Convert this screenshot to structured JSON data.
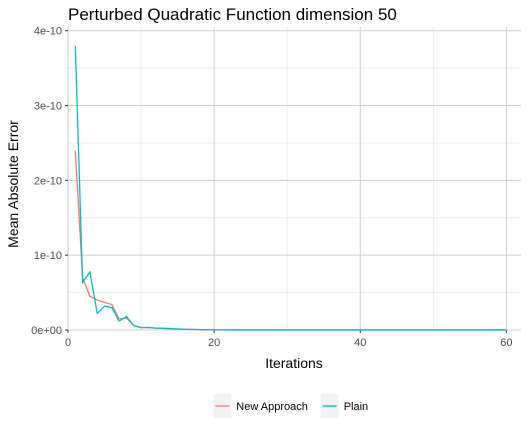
{
  "chart_data": {
    "type": "line",
    "title": "Perturbed Quadratic Function dimension 50",
    "xlabel": "Iterations",
    "ylabel": "Mean Absolute Error",
    "xlim": [
      0,
      62
    ],
    "ylim": [
      0,
      4.05e-10
    ],
    "xticks": [
      0,
      20,
      40,
      60
    ],
    "xtick_labels": [
      "0",
      "20",
      "40",
      "60"
    ],
    "yticks": [
      0,
      1e-10,
      2e-10,
      3e-10,
      4e-10
    ],
    "ytick_labels": [
      "0e+00",
      "1e-10",
      "2e-10",
      "3e-10",
      "4e-10"
    ],
    "grid": true,
    "legend_position": "bottom",
    "x": [
      1,
      2,
      3,
      4,
      5,
      6,
      7,
      8,
      9,
      10,
      11,
      12,
      13,
      14,
      15,
      16,
      17,
      18,
      19,
      20,
      21,
      22,
      23,
      24,
      25,
      26,
      27,
      28,
      29,
      30,
      31,
      32,
      33,
      34,
      35,
      36,
      37,
      38,
      39,
      40,
      41,
      42,
      43,
      44,
      45,
      46,
      47,
      48,
      49,
      50,
      51,
      52,
      53,
      54,
      55,
      56,
      57,
      58,
      59,
      60
    ],
    "series": [
      {
        "name": "New Approach",
        "color": "#F8766D",
        "values": [
          2.4e-10,
          7e-11,
          4.5e-11,
          4e-11,
          3.7e-11,
          3.4e-11,
          1.5e-11,
          1.6e-11,
          6e-12,
          3.5e-12,
          3e-12,
          2.5e-12,
          2e-12,
          1.5e-12,
          1e-12,
          8e-13,
          6e-13,
          4e-13,
          3e-13,
          2e-13,
          1.5e-13,
          1e-13,
          1e-13,
          1e-13,
          1e-13,
          1e-13,
          1e-13,
          1e-13,
          1e-13,
          1e-13,
          1e-13,
          1e-13,
          1e-13,
          1e-13,
          1e-13,
          1e-13,
          1e-13,
          1e-13,
          1e-13,
          1e-13,
          1e-13,
          1e-13,
          1e-13,
          1e-13,
          1e-13,
          1e-13,
          1e-13,
          1e-13,
          1e-13,
          1e-13,
          1e-13,
          1e-13,
          1e-13,
          1e-13,
          1e-13,
          1e-13,
          1e-13,
          1e-13,
          1e-13,
          1e-13
        ]
      },
      {
        "name": "Plain",
        "color": "#00BFC4",
        "values": [
          3.8e-10,
          6.3e-11,
          7.8e-11,
          2.2e-11,
          3.2e-11,
          3e-11,
          1.2e-11,
          1.8e-11,
          6e-12,
          3e-12,
          3.5e-12,
          2.5e-12,
          2.5e-12,
          2e-12,
          1.5e-12,
          1e-12,
          8e-13,
          6e-13,
          4e-13,
          3e-13,
          2e-13,
          1.5e-13,
          1e-13,
          1e-13,
          1e-13,
          1e-13,
          1e-13,
          1e-13,
          1e-13,
          1e-13,
          1e-13,
          1e-13,
          1e-13,
          1e-13,
          1e-13,
          1e-13,
          1e-13,
          1e-13,
          1e-13,
          1e-13,
          1e-13,
          1e-13,
          1e-13,
          1e-13,
          1e-13,
          1e-13,
          1e-13,
          1e-13,
          1e-13,
          1e-13,
          1e-13,
          1e-13,
          1e-13,
          1e-13,
          1e-13,
          1e-13,
          1e-13,
          1e-13,
          1e-13,
          1e-13
        ]
      }
    ]
  }
}
